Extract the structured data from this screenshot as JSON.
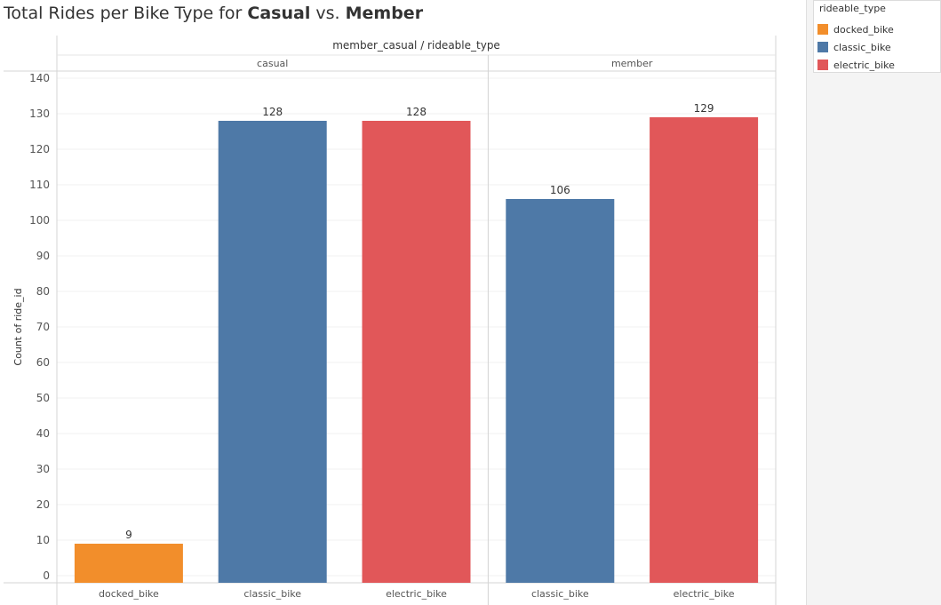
{
  "title": {
    "pre": "Total Rides per Bike Type for ",
    "b1": "Casual",
    "mid": " vs. ",
    "b2": "Member"
  },
  "legend": {
    "title": "rideable_type",
    "items": [
      {
        "label": "docked_bike",
        "color": "#f28e2b"
      },
      {
        "label": "classic_bike",
        "color": "#4e79a7"
      },
      {
        "label": "electric_bike",
        "color": "#e15759"
      }
    ]
  },
  "chart_data": {
    "type": "bar",
    "header": "member_casual / rideable_type",
    "ylabel": "Count of ride_id",
    "ylim": [
      0,
      140
    ],
    "yticks": [
      0,
      10,
      20,
      30,
      40,
      50,
      60,
      70,
      80,
      90,
      100,
      110,
      120,
      130,
      140
    ],
    "panels": [
      {
        "name": "casual",
        "bars": [
          {
            "category": "docked_bike",
            "value": 9,
            "color": "#f28e2b"
          },
          {
            "category": "classic_bike",
            "value": 128,
            "color": "#4e79a7"
          },
          {
            "category": "electric_bike",
            "value": 128,
            "color": "#e15759"
          }
        ]
      },
      {
        "name": "member",
        "bars": [
          {
            "category": "classic_bike",
            "value": 106,
            "color": "#4e79a7"
          },
          {
            "category": "electric_bike",
            "value": 129,
            "color": "#e15759"
          }
        ]
      }
    ]
  }
}
